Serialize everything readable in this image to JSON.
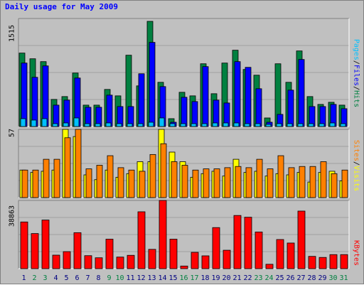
{
  "title": "Daily usage for May 2009",
  "colors": {
    "background": "#c0c0c0",
    "grid": "#a0a0a0",
    "hits": "#008040",
    "files": "#0000ff",
    "pages": "#00c0ff",
    "visits": "#ffff00",
    "sites": "#ff8000",
    "kbytes": "#ff0000",
    "weekend_label": "#008040",
    "weekday_label": "#000080"
  },
  "legend": {
    "pages": "Pages",
    "files": "Files",
    "hits": "Hits",
    "visits": "Visits",
    "sites": "Sites",
    "kbytes": "KBytes",
    "sep": "/"
  },
  "chart_data": [
    {
      "type": "bar",
      "name": "hits-files-pages",
      "ymax_label": "1515",
      "ylim": [
        0,
        1515
      ],
      "grid": true,
      "categories": [
        "1",
        "2",
        "3",
        "4",
        "5",
        "6",
        "7",
        "8",
        "9",
        "10",
        "11",
        "12",
        "13",
        "14",
        "15",
        "16",
        "17",
        "18",
        "19",
        "20",
        "21",
        "22",
        "23",
        "24",
        "25",
        "26",
        "27",
        "28",
        "29",
        "30",
        "31"
      ],
      "weekend_days": [
        2,
        3,
        9,
        10,
        16,
        17,
        23,
        24,
        30,
        31
      ],
      "series": [
        {
          "name": "Hits",
          "values": [
            1030,
            950,
            910,
            380,
            420,
            750,
            300,
            300,
            520,
            430,
            1000,
            570,
            1475,
            620,
            110,
            480,
            430,
            880,
            460,
            890,
            1070,
            800,
            720,
            120,
            880,
            620,
            1060,
            420,
            310,
            340,
            300
          ]
        },
        {
          "name": "Files",
          "values": [
            890,
            690,
            850,
            300,
            370,
            680,
            270,
            270,
            440,
            280,
            280,
            740,
            1180,
            560,
            60,
            410,
            350,
            840,
            370,
            330,
            910,
            830,
            530,
            60,
            170,
            510,
            940,
            280,
            280,
            310,
            250
          ]
        },
        {
          "name": "Pages",
          "values": [
            110,
            90,
            110,
            40,
            50,
            120,
            40,
            40,
            50,
            40,
            40,
            40,
            60,
            120,
            40,
            40,
            40,
            40,
            50,
            50,
            50,
            40,
            40,
            30,
            40,
            40,
            40,
            40,
            40,
            50,
            40
          ]
        }
      ]
    },
    {
      "type": "bar",
      "name": "visits-sites",
      "ymax_label": "57",
      "ylim": [
        0,
        57
      ],
      "grid": true,
      "categories": [
        "1",
        "2",
        "3",
        "4",
        "5",
        "6",
        "7",
        "8",
        "9",
        "10",
        "11",
        "12",
        "13",
        "14",
        "15",
        "16",
        "17",
        "18",
        "19",
        "20",
        "21",
        "22",
        "23",
        "24",
        "25",
        "26",
        "27",
        "28",
        "29",
        "30",
        "31"
      ],
      "series": [
        {
          "name": "Visits",
          "values": [
            23,
            21,
            22,
            23,
            57,
            51,
            19,
            15,
            23,
            17,
            20,
            30,
            30,
            57,
            38,
            30,
            17,
            20,
            22,
            18,
            32,
            21,
            22,
            18,
            20,
            19,
            21,
            13,
            21,
            22,
            14
          ]
        },
        {
          "name": "Sites",
          "values": [
            23,
            23,
            32,
            32,
            50,
            57,
            24,
            27,
            35,
            25,
            23,
            22,
            36,
            45,
            30,
            27,
            23,
            24,
            24,
            25,
            26,
            25,
            32,
            24,
            35,
            25,
            26,
            26,
            30,
            20,
            23
          ]
        }
      ]
    },
    {
      "type": "bar",
      "name": "kbytes",
      "ymax_label": "38863",
      "ylim": [
        0,
        38863
      ],
      "grid": true,
      "categories": [
        "1",
        "2",
        "3",
        "4",
        "5",
        "6",
        "7",
        "8",
        "9",
        "10",
        "11",
        "12",
        "13",
        "14",
        "15",
        "16",
        "17",
        "18",
        "19",
        "20",
        "21",
        "22",
        "23",
        "24",
        "25",
        "26",
        "27",
        "28",
        "29",
        "30",
        "31"
      ],
      "series": [
        {
          "name": "KBytes",
          "values": [
            26600,
            20000,
            27700,
            7700,
            9700,
            20500,
            7400,
            6200,
            16800,
            6600,
            7600,
            32400,
            11000,
            38863,
            16800,
            1500,
            9300,
            7300,
            23400,
            10500,
            30300,
            29300,
            20900,
            2500,
            16600,
            14600,
            32800,
            7000,
            6400,
            8000,
            8000
          ]
        }
      ]
    }
  ]
}
